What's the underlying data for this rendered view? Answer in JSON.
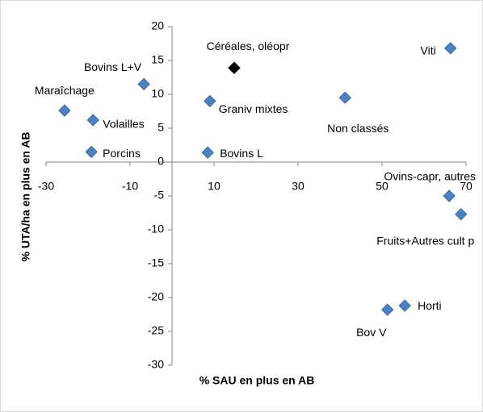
{
  "chart_data": {
    "type": "scatter",
    "xlabel": "% SAU en plus en AB",
    "ylabel": "% UTA/ha en plus en AB",
    "point_labels": [
      "Maraîchage",
      "Volailles",
      "Porcins",
      "Bovins L+V",
      "Céréales, oléopr",
      "Graniv mixtes",
      "Bovins L",
      "Non classés",
      "Viti",
      "Ovins-capr, autres",
      "Fruits+Autres cult p",
      "Horti",
      "Bov V"
    ],
    "x": [
      -25.6,
      -18.8,
      -19.2,
      -6.7,
      14.8,
      9.0,
      8.5,
      41.2,
      66.3,
      66.0,
      68.8,
      55.4,
      51.3
    ],
    "values": [
      7.6,
      6.2,
      1.5,
      11.5,
      13.9,
      9.0,
      1.4,
      9.5,
      16.8,
      -5.0,
      -7.7,
      -21.2,
      -21.8
    ],
    "colors": [
      "#4f81bd",
      "#4f81bd",
      "#4f81bd",
      "#4f81bd",
      "#000000",
      "#4f81bd",
      "#4f81bd",
      "#4f81bd",
      "#4f81bd",
      "#4f81bd",
      "#4f81bd",
      "#4f81bd",
      "#4f81bd"
    ],
    "xlim": [
      -30,
      70
    ],
    "xticks": [
      -30,
      -10,
      10,
      30,
      50,
      70
    ],
    "ylim": [
      -30,
      20
    ],
    "yticks": [
      -30,
      -25,
      -20,
      -15,
      -10,
      -5,
      0,
      5,
      10,
      15,
      20
    ]
  }
}
